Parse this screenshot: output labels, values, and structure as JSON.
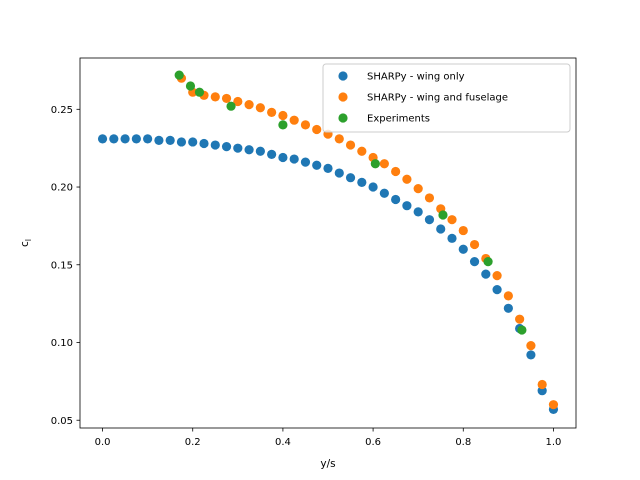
{
  "chart_data": {
    "type": "scatter",
    "title": "",
    "xlabel": "y/s",
    "ylabel_main": "c",
    "ylabel_sub": "l",
    "xlim": [
      -0.05,
      1.05
    ],
    "ylim": [
      0.045,
      0.283
    ],
    "xticks": [
      "0.0",
      "0.2",
      "0.4",
      "0.6",
      "0.8",
      "1.0"
    ],
    "xtick_values": [
      0.0,
      0.2,
      0.4,
      0.6,
      0.8,
      1.0
    ],
    "yticks": [
      "0.05",
      "0.10",
      "0.15",
      "0.20",
      "0.25"
    ],
    "ytick_values": [
      0.05,
      0.1,
      0.15,
      0.2,
      0.25
    ],
    "grid": false,
    "legend_position": "top-right",
    "series": [
      {
        "name": "SHARPy - wing only",
        "color": "#1f77b4",
        "x": [
          0.0,
          0.025,
          0.05,
          0.075,
          0.1,
          0.125,
          0.15,
          0.175,
          0.2,
          0.225,
          0.25,
          0.275,
          0.3,
          0.325,
          0.35,
          0.375,
          0.4,
          0.425,
          0.45,
          0.475,
          0.5,
          0.525,
          0.55,
          0.575,
          0.6,
          0.625,
          0.65,
          0.675,
          0.7,
          0.725,
          0.75,
          0.775,
          0.8,
          0.825,
          0.85,
          0.875,
          0.9,
          0.925,
          0.95,
          0.975,
          1.0
        ],
        "y": [
          0.231,
          0.231,
          0.231,
          0.231,
          0.231,
          0.23,
          0.23,
          0.229,
          0.229,
          0.228,
          0.227,
          0.226,
          0.225,
          0.224,
          0.223,
          0.221,
          0.219,
          0.218,
          0.216,
          0.214,
          0.212,
          0.209,
          0.206,
          0.203,
          0.2,
          0.196,
          0.192,
          0.188,
          0.184,
          0.179,
          0.173,
          0.167,
          0.16,
          0.152,
          0.144,
          0.134,
          0.122,
          0.109,
          0.092,
          0.069,
          0.057
        ]
      },
      {
        "name": "SHARPy - wing and fuselage",
        "color": "#ff7f0e",
        "x": [
          0.175,
          0.2,
          0.225,
          0.25,
          0.275,
          0.3,
          0.325,
          0.35,
          0.375,
          0.4,
          0.425,
          0.45,
          0.475,
          0.5,
          0.525,
          0.55,
          0.575,
          0.6,
          0.625,
          0.65,
          0.675,
          0.7,
          0.725,
          0.75,
          0.775,
          0.8,
          0.825,
          0.85,
          0.875,
          0.9,
          0.925,
          0.95,
          0.975,
          1.0
        ],
        "y": [
          0.27,
          0.261,
          0.259,
          0.258,
          0.257,
          0.255,
          0.253,
          0.251,
          0.248,
          0.246,
          0.243,
          0.24,
          0.237,
          0.234,
          0.231,
          0.227,
          0.223,
          0.219,
          0.215,
          0.21,
          0.205,
          0.199,
          0.193,
          0.186,
          0.179,
          0.172,
          0.163,
          0.154,
          0.143,
          0.13,
          0.115,
          0.098,
          0.073,
          0.06
        ]
      },
      {
        "name": "Experiments",
        "color": "#2ca02c",
        "x": [
          0.17,
          0.195,
          0.215,
          0.285,
          0.4,
          0.605,
          0.755,
          0.855,
          0.93
        ],
        "y": [
          0.272,
          0.265,
          0.261,
          0.252,
          0.24,
          0.215,
          0.182,
          0.152,
          0.108
        ]
      }
    ]
  }
}
